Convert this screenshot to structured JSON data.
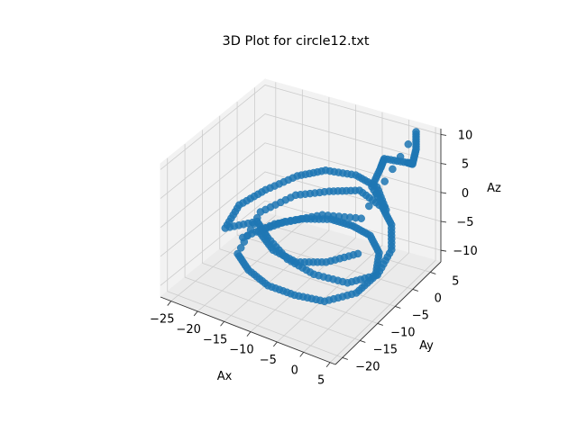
{
  "chart_data": {
    "type": "scatter",
    "title": "3D Plot for circle12.txt",
    "xlabel": "Ax",
    "ylabel": "Ay",
    "zlabel": "Az",
    "x_ticks": [
      "−25",
      "−20",
      "−15",
      "−10",
      "−5",
      "0",
      "5"
    ],
    "y_ticks": [
      "−20",
      "−15",
      "−10",
      "−5",
      "0",
      "5"
    ],
    "z_ticks": [
      "−10",
      "−5",
      "0",
      "5",
      "10"
    ],
    "xlim": [
      -27,
      6
    ],
    "ylim": [
      -22,
      8
    ],
    "zlim": [
      -12,
      11
    ],
    "grid": true,
    "projection": "3d",
    "series": [
      {
        "color": "#1f77b4",
        "marker": "circle",
        "points": [
          {
            "x": -22,
            "y": -6,
            "z": -8
          },
          {
            "x": -18,
            "y": -3,
            "z": -6
          },
          {
            "x": -14,
            "y": -1,
            "z": -5
          },
          {
            "x": -10,
            "y": 1,
            "z": -5
          },
          {
            "x": -6,
            "y": 1,
            "z": -5
          },
          {
            "x": -2,
            "y": 0,
            "z": -5
          },
          {
            "x": 1,
            "y": -2,
            "z": -6
          },
          {
            "x": 3,
            "y": -6,
            "z": -7
          },
          {
            "x": 2,
            "y": -10,
            "z": -8
          },
          {
            "x": -2,
            "y": -13,
            "z": -9
          },
          {
            "x": -7,
            "y": -14,
            "z": -9
          },
          {
            "x": -12,
            "y": -14,
            "z": -9
          },
          {
            "x": -17,
            "y": -12,
            "z": -9
          },
          {
            "x": -21,
            "y": -9,
            "z": -9
          },
          {
            "x": -20,
            "y": -4,
            "z": -4
          },
          {
            "x": -16,
            "y": 0,
            "z": -2
          },
          {
            "x": -11,
            "y": 2,
            "z": -1
          },
          {
            "x": -6,
            "y": 3,
            "z": 0
          },
          {
            "x": -1,
            "y": 2,
            "z": -1
          },
          {
            "x": 2,
            "y": 0,
            "z": -2
          },
          {
            "x": 4,
            "y": -3,
            "z": -4
          },
          {
            "x": 4,
            "y": -7,
            "z": -6
          },
          {
            "x": 1,
            "y": -11,
            "z": -6
          },
          {
            "x": -4,
            "y": -13,
            "z": -5
          },
          {
            "x": -9,
            "y": -13,
            "z": -4
          },
          {
            "x": -14,
            "y": -11,
            "z": -3
          },
          {
            "x": -18,
            "y": -8,
            "z": -3
          },
          {
            "x": -24,
            "y": -8,
            "z": -6
          },
          {
            "x": -24,
            "y": -4,
            "z": -4
          },
          {
            "x": -21,
            "y": -1,
            "z": -2
          },
          {
            "x": -17,
            "y": 2,
            "z": 0
          },
          {
            "x": -13,
            "y": 4,
            "z": 1
          },
          {
            "x": -8,
            "y": 5,
            "z": 1
          },
          {
            "x": -4,
            "y": 5,
            "z": 0
          },
          {
            "x": -1,
            "y": 3,
            "z": -2
          },
          {
            "x": -3,
            "y": 2,
            "z": 2
          },
          {
            "x": -2,
            "y": 3,
            "z": 5
          },
          {
            "x": -2,
            "y": 4,
            "z": 6
          },
          {
            "x": 1,
            "y": 6,
            "z": 5
          },
          {
            "x": 2,
            "y": 6,
            "z": 5
          },
          {
            "x": 2,
            "y": 7,
            "z": 7
          },
          {
            "x": 2,
            "y": 7,
            "z": 10
          },
          {
            "x": -5,
            "y": 2,
            "z": -4
          },
          {
            "x": -11,
            "y": 0,
            "z": -4
          },
          {
            "x": -16,
            "y": -3,
            "z": -5
          },
          {
            "x": -19,
            "y": -6,
            "z": -6
          },
          {
            "x": -15,
            "y": -8,
            "z": -7
          },
          {
            "x": -10,
            "y": -9,
            "z": -7
          },
          {
            "x": -5,
            "y": -8,
            "z": -6
          },
          {
            "x": -1,
            "y": -5,
            "z": -5
          }
        ]
      }
    ]
  }
}
